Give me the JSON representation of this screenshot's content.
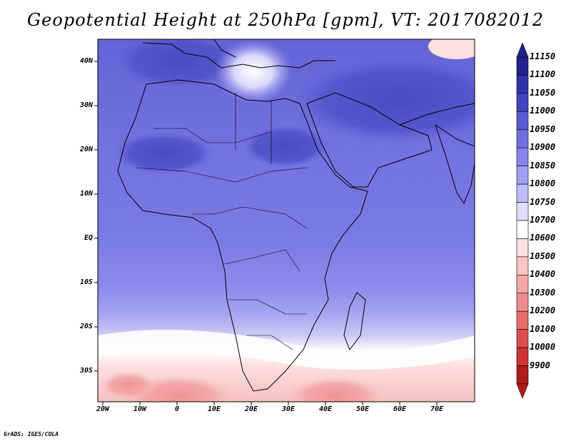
{
  "title": "Geopotential Height at 250hPa [gpm], VT: 2017082012",
  "footer": "GrADS: IGES/COLA",
  "lat_labels": [
    "40N",
    "30N",
    "20N",
    "10N",
    "EQ",
    "10S",
    "20S",
    "30S"
  ],
  "lon_labels": [
    "20W",
    "10W",
    "0",
    "10E",
    "20E",
    "30E",
    "40E",
    "50E",
    "60E",
    "70E"
  ],
  "colorbar": {
    "levels": [
      "11150",
      "11100",
      "11050",
      "11000",
      "10950",
      "10900",
      "10850",
      "10800",
      "10750",
      "10700",
      "10600",
      "10500",
      "10400",
      "10300",
      "10200",
      "10100",
      "10000",
      "9900"
    ],
    "colors": [
      "#23238c",
      "#3232a8",
      "#4343be",
      "#5a5ad2",
      "#7070e0",
      "#8686ea",
      "#a0a0f0",
      "#bcbcf6",
      "#dedefb",
      "#ffffff",
      "#fde0e0",
      "#f8c4c4",
      "#f3a8a8",
      "#ec8c8c",
      "#e46e6e",
      "#dc5050",
      "#cc3434",
      "#b01c1c"
    ]
  }
}
